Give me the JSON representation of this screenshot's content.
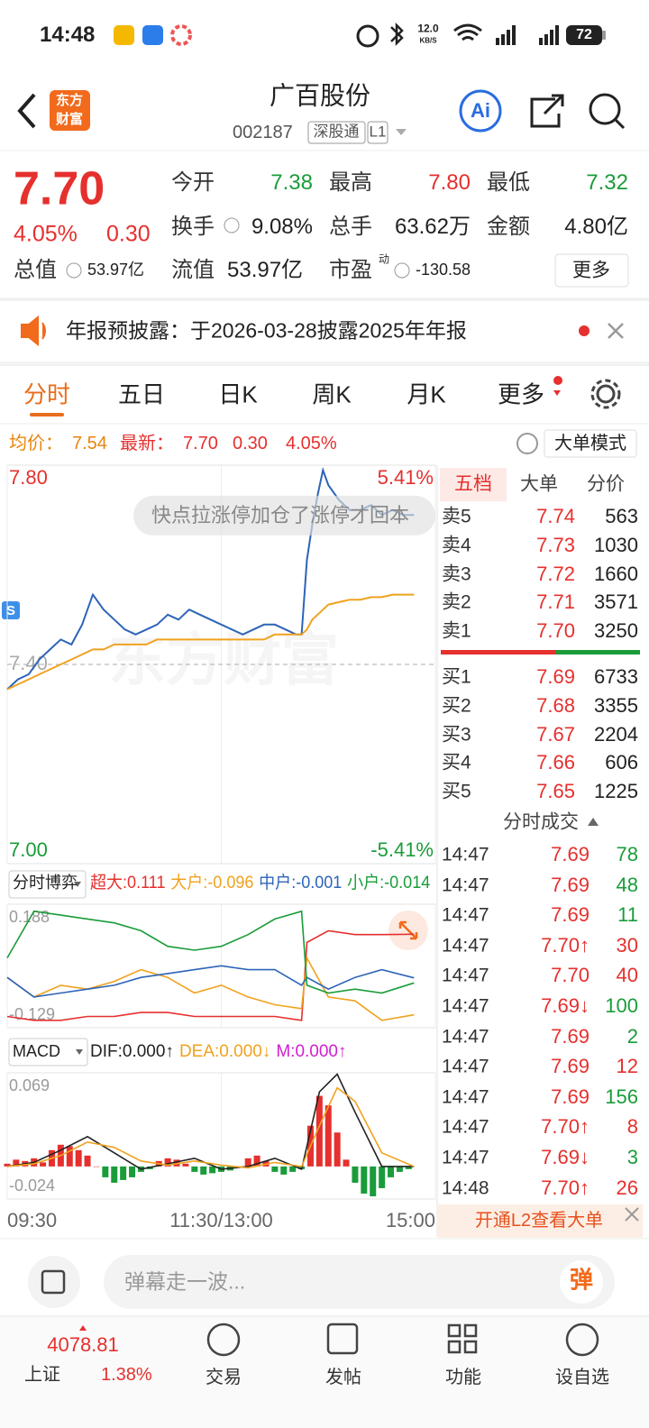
{
  "status_bar": {
    "time": "14:48",
    "net_speed": "12.0",
    "net_unit": "KB/S",
    "battery": "72"
  },
  "header": {
    "logo": [
      "东方",
      "财富"
    ],
    "title": "广百股份",
    "code": "002187",
    "exchange_tag": "深股通",
    "level": "L1",
    "ai_button": "Ai"
  },
  "quote": {
    "price": "7.70",
    "change_pct": "4.05%",
    "change": "0.30",
    "total_cap_label": "总值",
    "total_cap": "53.97亿",
    "fields": [
      {
        "label": "今开",
        "value": "7.38",
        "color": "#1a9c3a"
      },
      {
        "label": "最高",
        "value": "7.80",
        "color": "#e5302e"
      },
      {
        "label": "最低",
        "value": "7.32",
        "color": "#1a9c3a"
      },
      {
        "label": "换手",
        "value": "9.08%",
        "color": "#222222"
      },
      {
        "label": "总手",
        "value": "63.62万",
        "color": "#222222"
      },
      {
        "label": "金额",
        "value": "4.80亿",
        "color": "#222222"
      },
      {
        "label": "流值",
        "value": "53.97亿",
        "color": "#222222"
      },
      {
        "label": "市盈",
        "label_sup": "动",
        "value": "-130.58",
        "color": "#222222"
      }
    ],
    "more_button": "更多",
    "up_color": "#e5302e"
  },
  "notice": {
    "text": "年报预披露：于2026-03-28披露2025年年报"
  },
  "tabs": {
    "items": [
      "分时",
      "五日",
      "日K",
      "周K",
      "月K",
      "更多"
    ],
    "active": 0
  },
  "info_line": {
    "avg_label": "均价：",
    "avg": "7.54",
    "last_label": "最新：",
    "last": "7.70",
    "change": "0.30",
    "change_pct": "4.05%",
    "mode_button": "大单模式"
  },
  "overlay": {
    "danmaku": "快点拉涨停加仓了涨停才回本",
    "watermark": "东方财富",
    "badge": "S"
  },
  "chart_data": [
    {
      "type": "line",
      "xlim": [
        0,
        240
      ],
      "xticks": [
        {
          "value": 0,
          "label": "09:30"
        },
        {
          "value": 120,
          "label": "11:30/13:00"
        },
        {
          "value": 240,
          "label": "15:00"
        }
      ],
      "ylim": [
        7.0,
        7.8
      ],
      "yticks": [
        {
          "value": 7.8,
          "label": "7.80"
        },
        {
          "value": 7.4,
          "label": "7.40"
        },
        {
          "value": 7.0,
          "label": "7.00"
        }
      ],
      "tick_colors": [
        "#e5302e",
        "#aaaaaa",
        "#1a9c3a"
      ],
      "y2lim": [
        -5.41,
        5.41
      ],
      "y2ticks": [
        {
          "value": 5.41,
          "label": "5.41%"
        },
        {
          "value": -5.41,
          "label": "-5.41%"
        }
      ],
      "y2tick_colors": [
        "#e5302e",
        "#1a9c3a"
      ],
      "x": [
        0,
        6,
        12,
        18,
        24,
        30,
        36,
        42,
        48,
        54,
        60,
        66,
        72,
        78,
        84,
        90,
        96,
        102,
        108,
        114,
        120,
        126,
        132,
        138,
        144,
        150,
        156,
        162,
        165,
        168,
        171,
        174,
        177,
        180,
        186,
        192,
        198,
        204,
        210,
        216,
        222,
        228
      ],
      "series": [
        {
          "color": "#2d64b8",
          "values": [
            7.35,
            7.37,
            7.38,
            7.41,
            7.43,
            7.45,
            7.44,
            7.48,
            7.54,
            7.51,
            7.49,
            7.47,
            7.46,
            7.47,
            7.48,
            7.5,
            7.49,
            7.51,
            7.5,
            7.49,
            7.48,
            7.47,
            7.46,
            7.47,
            7.48,
            7.48,
            7.47,
            7.46,
            7.46,
            7.61,
            7.68,
            7.74,
            7.79,
            7.76,
            7.73,
            7.71,
            7.71,
            7.72,
            7.7,
            7.71,
            7.7,
            7.7
          ]
        },
        {
          "color": "#f0a21f",
          "values": [
            7.35,
            7.36,
            7.37,
            7.38,
            7.39,
            7.4,
            7.41,
            7.42,
            7.43,
            7.43,
            7.44,
            7.44,
            7.44,
            7.44,
            7.45,
            7.45,
            7.45,
            7.45,
            7.45,
            7.45,
            7.45,
            7.45,
            7.45,
            7.45,
            7.45,
            7.46,
            7.46,
            7.46,
            7.46,
            7.47,
            7.49,
            7.5,
            7.51,
            7.52,
            7.525,
            7.53,
            7.53,
            7.535,
            7.535,
            7.54,
            7.54,
            7.54
          ]
        }
      ]
    },
    {
      "type": "line",
      "selector": "分时博弈",
      "xlim": [
        0,
        240
      ],
      "ylim": [
        -0.129,
        0.188
      ],
      "yticks": [
        0.188,
        -0.129
      ],
      "tick_colors": [
        "#999999",
        "#999999"
      ],
      "x": [
        0,
        15,
        30,
        45,
        60,
        75,
        90,
        105,
        120,
        135,
        150,
        165,
        168,
        180,
        195,
        210,
        228
      ],
      "series": [
        {
          "name": "超大:0.111",
          "color": "#e5302e",
          "values": [
            -0.1,
            -0.11,
            -0.11,
            -0.1,
            -0.1,
            -0.09,
            -0.09,
            -0.1,
            -0.1,
            -0.1,
            -0.1,
            -0.11,
            0.09,
            0.12,
            0.11,
            0.11,
            0.111
          ]
        },
        {
          "name": "大户:-0.096",
          "color": "#f0a21f",
          "values": [
            0.0,
            -0.05,
            -0.02,
            -0.03,
            -0.01,
            0.02,
            0.0,
            -0.04,
            -0.02,
            -0.05,
            -0.07,
            -0.08,
            0.05,
            -0.05,
            -0.06,
            -0.11,
            -0.096
          ]
        },
        {
          "name": "中户:-0.001",
          "color": "#2d64b8",
          "values": [
            0.0,
            -0.05,
            -0.04,
            -0.03,
            -0.02,
            0.0,
            0.01,
            0.02,
            0.03,
            0.02,
            0.02,
            -0.02,
            0.0,
            -0.03,
            0.0,
            0.02,
            -0.001
          ]
        },
        {
          "name": "小户:-0.014",
          "color": "#1a9c3a",
          "values": [
            0.05,
            0.17,
            0.16,
            0.15,
            0.14,
            0.12,
            0.08,
            0.07,
            0.08,
            0.11,
            0.15,
            0.17,
            -0.02,
            -0.04,
            -0.03,
            -0.04,
            -0.014
          ]
        }
      ]
    },
    {
      "type": "bar",
      "selector": "MACD",
      "xlim": [
        0,
        240
      ],
      "ylim": [
        -0.024,
        0.069
      ],
      "yticks": [
        0.069,
        -0.024
      ],
      "tick_colors": [
        "#999999",
        "#999999"
      ],
      "x": [
        0,
        5,
        10,
        15,
        20,
        25,
        30,
        35,
        40,
        45,
        50,
        55,
        60,
        65,
        70,
        75,
        80,
        85,
        90,
        95,
        100,
        105,
        110,
        115,
        120,
        125,
        130,
        135,
        140,
        145,
        150,
        155,
        160,
        165,
        170,
        175,
        180,
        185,
        190,
        195,
        200,
        205,
        210,
        215,
        220,
        225
      ],
      "values": [
        0.002,
        0.005,
        0.004,
        0.006,
        0.003,
        0.012,
        0.016,
        0.015,
        0.012,
        0.008,
        0.0,
        -0.008,
        -0.012,
        -0.01,
        -0.008,
        -0.004,
        -0.002,
        0.004,
        0.006,
        0.005,
        0.002,
        -0.004,
        -0.006,
        -0.005,
        -0.004,
        -0.003,
        -0.001,
        0.006,
        0.008,
        0.004,
        -0.004,
        -0.006,
        -0.004,
        -0.002,
        0.03,
        0.052,
        0.045,
        0.025,
        0.005,
        -0.012,
        -0.02,
        -0.022,
        -0.016,
        -0.008,
        -0.004,
        -0.002
      ],
      "bar_colors": [
        "#e5302e",
        "#1a9c3a"
      ],
      "bar_name": "M:0.000↑",
      "bar_name_color": "#d01fd0",
      "series": [
        {
          "name": "DIF:0.000↑",
          "color": "#222222",
          "x": [
            0,
            15,
            30,
            45,
            60,
            75,
            90,
            105,
            120,
            135,
            150,
            165,
            175,
            185,
            195,
            210,
            228
          ],
          "values": [
            0,
            0.003,
            0.012,
            0.022,
            0.01,
            -0.002,
            0.002,
            0.006,
            -0.002,
            0.0,
            0.006,
            -0.002,
            0.055,
            0.068,
            0.04,
            0.0,
            0.0
          ]
        },
        {
          "name": "DEA:0.000↓",
          "color": "#f0a21f",
          "x": [
            0,
            15,
            30,
            45,
            60,
            75,
            90,
            105,
            120,
            135,
            150,
            165,
            175,
            185,
            195,
            210,
            228
          ],
          "values": [
            0,
            0.002,
            0.008,
            0.018,
            0.014,
            0.004,
            0.001,
            0.004,
            0.001,
            -0.001,
            0.003,
            0.0,
            0.03,
            0.058,
            0.048,
            0.01,
            0.0
          ]
        }
      ]
    }
  ],
  "order_book": {
    "tabs": [
      "五档",
      "大单",
      "分价"
    ],
    "active": 0,
    "price_color": "#e5302e",
    "asks": [
      {
        "label": "卖5",
        "price": "7.74",
        "qty": "563"
      },
      {
        "label": "卖4",
        "price": "7.73",
        "qty": "1030"
      },
      {
        "label": "卖3",
        "price": "7.72",
        "qty": "1660"
      },
      {
        "label": "卖2",
        "price": "7.71",
        "qty": "3571"
      },
      {
        "label": "卖1",
        "price": "7.70",
        "qty": "3250"
      }
    ],
    "bids": [
      {
        "label": "买1",
        "price": "7.69",
        "qty": "6733"
      },
      {
        "label": "买2",
        "price": "7.68",
        "qty": "3355"
      },
      {
        "label": "买3",
        "price": "7.67",
        "qty": "2204"
      },
      {
        "label": "买4",
        "price": "7.66",
        "qty": "606"
      },
      {
        "label": "买5",
        "price": "7.65",
        "qty": "1225"
      }
    ]
  },
  "trades": {
    "title": "分时成交",
    "colors": {
      "up": "#e5302e",
      "down": "#1a9c3a"
    },
    "rows": [
      {
        "time": "14:47",
        "price": "7.69",
        "volume": "78",
        "side": "down"
      },
      {
        "time": "14:47",
        "price": "7.69",
        "volume": "48",
        "side": "down"
      },
      {
        "time": "14:47",
        "price": "7.69",
        "volume": "11",
        "side": "down"
      },
      {
        "time": "14:47",
        "price": "7.70↑",
        "volume": "30",
        "side": "up"
      },
      {
        "time": "14:47",
        "price": "7.70",
        "volume": "40",
        "side": "up"
      },
      {
        "time": "14:47",
        "price": "7.69↓",
        "volume": "100",
        "side": "down"
      },
      {
        "time": "14:47",
        "price": "7.69",
        "volume": "2",
        "side": "down"
      },
      {
        "time": "14:47",
        "price": "7.69",
        "volume": "12",
        "side": "up"
      },
      {
        "time": "14:47",
        "price": "7.69",
        "volume": "156",
        "side": "down"
      },
      {
        "time": "14:47",
        "price": "7.70↑",
        "volume": "8",
        "side": "up"
      },
      {
        "time": "14:47",
        "price": "7.69↓",
        "volume": "3",
        "side": "down"
      },
      {
        "time": "14:48",
        "price": "7.70↑",
        "volume": "26",
        "side": "up"
      }
    ],
    "banner": "开通L2查看大单"
  },
  "comment_bar": {
    "placeholder": "弹幕走一波...",
    "button": "弹"
  },
  "bottom_nav": {
    "index_value": "4078.81",
    "index_name": "上证",
    "index_pct": "1.38%",
    "items": [
      "交易",
      "发帖",
      "功能",
      "设自选"
    ]
  }
}
